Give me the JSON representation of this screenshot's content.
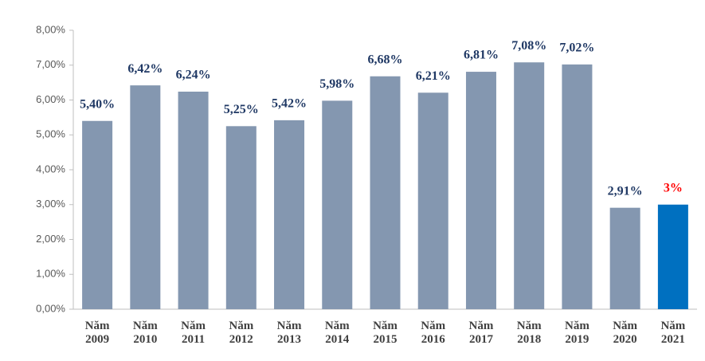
{
  "chart_data": {
    "type": "bar",
    "categories": [
      "Năm 2009",
      "Năm 2010",
      "Năm 2011",
      "Năm 2012",
      "Năm 2013",
      "Năm 2014",
      "Năm 2015",
      "Năm 2016",
      "Năm 2017",
      "Năm 2018",
      "Năm 2019",
      "Năm 2020",
      "Năm 2021"
    ],
    "values": [
      5.4,
      6.42,
      6.24,
      5.25,
      5.42,
      5.98,
      6.68,
      6.21,
      6.81,
      7.08,
      7.02,
      2.91,
      3
    ],
    "value_labels": [
      "5,40%",
      "6,42%",
      "6,24%",
      "5,25%",
      "5,42%",
      "5,98%",
      "6,68%",
      "6,21%",
      "6,81%",
      "7,08%",
      "7,02%",
      "2,91%",
      "3%"
    ],
    "colors": [
      "#8497b0",
      "#8497b0",
      "#8497b0",
      "#8497b0",
      "#8497b0",
      "#8497b0",
      "#8497b0",
      "#8497b0",
      "#8497b0",
      "#8497b0",
      "#8497b0",
      "#8497b0",
      "#0070c0"
    ],
    "label_colors": [
      "#1f3864",
      "#1f3864",
      "#1f3864",
      "#1f3864",
      "#1f3864",
      "#1f3864",
      "#1f3864",
      "#1f3864",
      "#1f3864",
      "#1f3864",
      "#1f3864",
      "#1f3864",
      "#ff0000"
    ],
    "ylim": [
      0,
      8
    ],
    "yticks": [
      {
        "value": 0,
        "label": "0,00%"
      },
      {
        "value": 1,
        "label": "1,00%"
      },
      {
        "value": 2,
        "label": "2,00%"
      },
      {
        "value": 3,
        "label": "3,00%"
      },
      {
        "value": 4,
        "label": "4,00%"
      },
      {
        "value": 5,
        "label": "5,00%"
      },
      {
        "value": 6,
        "label": "6,00%"
      },
      {
        "value": 7,
        "label": "7,00%"
      },
      {
        "value": 8,
        "label": "8,00%"
      }
    ],
    "grid": false
  }
}
